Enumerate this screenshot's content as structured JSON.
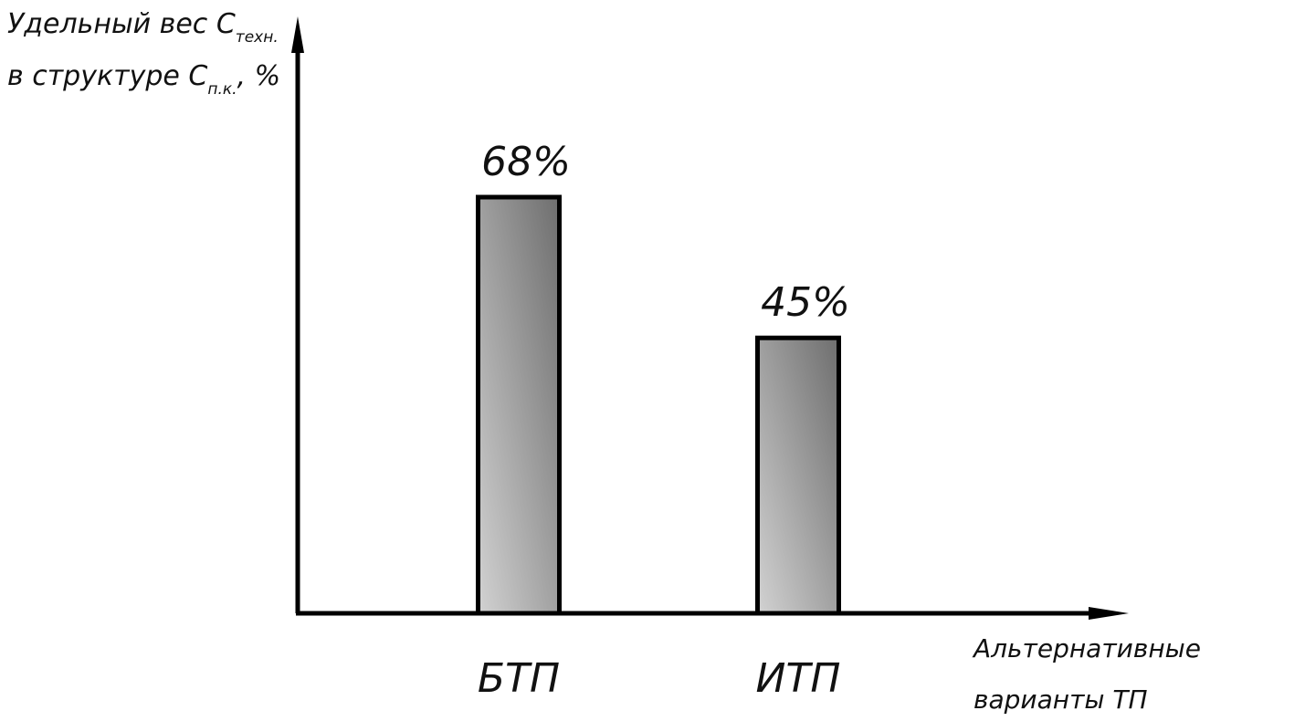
{
  "chart_data": {
    "type": "bar",
    "categories": [
      "БТП",
      "ИТП"
    ],
    "values": [
      68,
      45
    ],
    "value_labels": [
      "68%",
      "45%"
    ],
    "ylabel": {
      "line1": "Удельный вес С",
      "line1_sub": "техн.",
      "line2": "в структуре С",
      "line2_sub": "п.к.",
      "line2_suffix": ", %"
    },
    "xlabel": {
      "line1": "Альтернативные",
      "line2": "варианты ТП"
    },
    "ylim": [
      0,
      100
    ],
    "grid": false,
    "legend": "none",
    "bar_color_light": "#d2d2d2",
    "bar_color_dark": "#6e6e6e",
    "axis_color": "#000000"
  }
}
